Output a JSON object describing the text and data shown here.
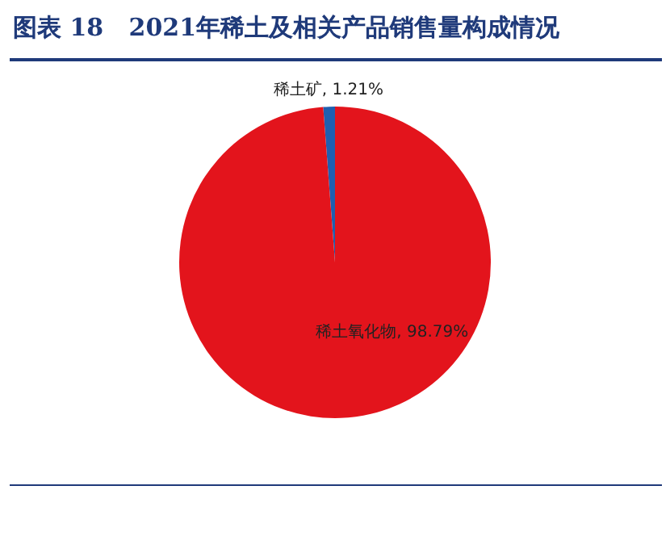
{
  "chart_data": {
    "type": "pie",
    "title": "图表 18   2021年稀土及相关产品销售量构成情况",
    "categories": [
      "稀土矿",
      "稀土氧化物"
    ],
    "values": [
      1.21,
      98.79
    ],
    "colors": [
      "#1f5fb0",
      "#e3141c"
    ],
    "value_labels": [
      "1.21%",
      "98.79%"
    ],
    "legend": false
  }
}
